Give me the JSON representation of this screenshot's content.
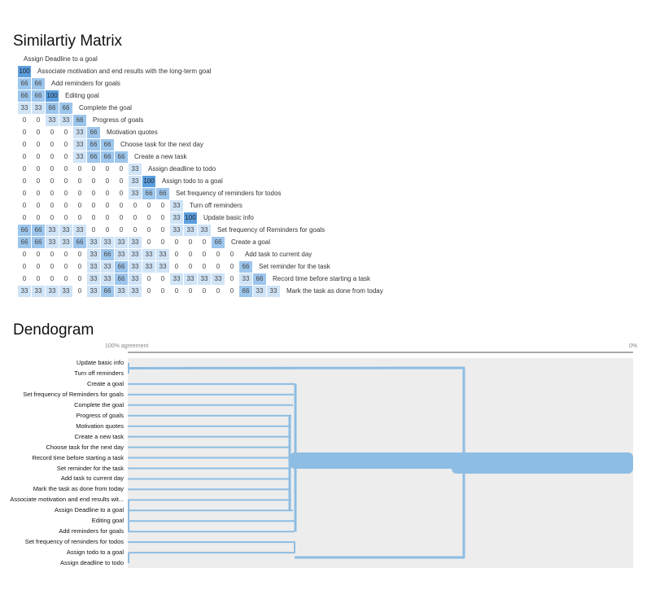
{
  "chart_data": [
    {
      "type": "heatmap",
      "title": "Similartiy Matrix",
      "header_label": "Assign Deadline to a goal",
      "rows": [
        {
          "label": "Associate motivation and end results with the long-term goal",
          "values": [
            100
          ]
        },
        {
          "label": "Add reminders for goals",
          "values": [
            66,
            66
          ]
        },
        {
          "label": "Editing goal",
          "values": [
            66,
            66,
            100
          ]
        },
        {
          "label": "Complete the goal",
          "values": [
            33,
            33,
            66,
            66
          ]
        },
        {
          "label": "Progress of goals",
          "values": [
            0,
            0,
            33,
            33,
            66
          ]
        },
        {
          "label": "Motivation quotes",
          "values": [
            0,
            0,
            0,
            0,
            33,
            66
          ]
        },
        {
          "label": "Choose task for the next day",
          "values": [
            0,
            0,
            0,
            0,
            33,
            66,
            66
          ]
        },
        {
          "label": "Create a new task",
          "values": [
            0,
            0,
            0,
            0,
            33,
            66,
            66,
            66
          ]
        },
        {
          "label": "Assign deadline to todo",
          "values": [
            0,
            0,
            0,
            0,
            0,
            0,
            0,
            0,
            33
          ]
        },
        {
          "label": "Assign todo to a goal",
          "values": [
            0,
            0,
            0,
            0,
            0,
            0,
            0,
            0,
            33,
            100
          ]
        },
        {
          "label": "Set frequency of reminders for todos",
          "values": [
            0,
            0,
            0,
            0,
            0,
            0,
            0,
            0,
            33,
            66,
            66
          ]
        },
        {
          "label": "Turn off reminders",
          "values": [
            0,
            0,
            0,
            0,
            0,
            0,
            0,
            0,
            0,
            0,
            0,
            33
          ]
        },
        {
          "label": "Update basic info",
          "values": [
            0,
            0,
            0,
            0,
            0,
            0,
            0,
            0,
            0,
            0,
            0,
            33,
            100
          ]
        },
        {
          "label": "Set frequency of Reminders for goals",
          "values": [
            66,
            66,
            33,
            33,
            33,
            0,
            0,
            0,
            0,
            0,
            0,
            33,
            33,
            33
          ]
        },
        {
          "label": "Create a goal",
          "values": [
            66,
            66,
            33,
            33,
            66,
            33,
            33,
            33,
            33,
            0,
            0,
            0,
            0,
            0,
            66
          ]
        },
        {
          "label": "Add task to current day",
          "values": [
            0,
            0,
            0,
            0,
            0,
            33,
            66,
            33,
            33,
            33,
            33,
            0,
            0,
            0,
            0,
            0
          ]
        },
        {
          "label": "Set reminder for the task",
          "values": [
            0,
            0,
            0,
            0,
            0,
            33,
            33,
            66,
            33,
            33,
            33,
            0,
            0,
            0,
            0,
            0,
            66
          ]
        },
        {
          "label": "Record time before starting a task",
          "values": [
            0,
            0,
            0,
            0,
            0,
            33,
            33,
            66,
            33,
            0,
            0,
            33,
            33,
            33,
            33,
            0,
            33,
            66
          ]
        },
        {
          "label": "Mark the task as done from today",
          "values": [
            33,
            33,
            33,
            33,
            0,
            33,
            66,
            33,
            33,
            0,
            0,
            0,
            0,
            0,
            0,
            0,
            66,
            33,
            33
          ]
        }
      ],
      "colors": {
        "100": "#5b9fe0",
        "66": "#9dc6ed",
        "33": "#d0e4f7",
        "0": "#ffffff"
      }
    },
    {
      "type": "dendrogram",
      "title": "Dendogram",
      "axis_left": "100% agreement",
      "axis_right": "0%",
      "leaves": [
        "Update basic info",
        "Turn off reminders",
        "Create a goal",
        "Set frequency of Reminders for goals",
        "Complete the goal",
        "Progress of goals",
        "Motivation quotes",
        "Create a new task",
        "Choose task for the next day",
        "Record time before starting a task",
        "Set reminder for the task",
        "Add task to current day",
        "Mark the task as done from today",
        "Associate motivation and end results wit...",
        "Assign Deadline to a goal",
        "Editing goal",
        "Add reminders for goals",
        "Set frequency of reminders for todos",
        "Assign todo to a goal",
        "Assign deadline to todo"
      ],
      "colors": {
        "link": "#8dbde3",
        "background": "#ededed"
      }
    }
  ]
}
